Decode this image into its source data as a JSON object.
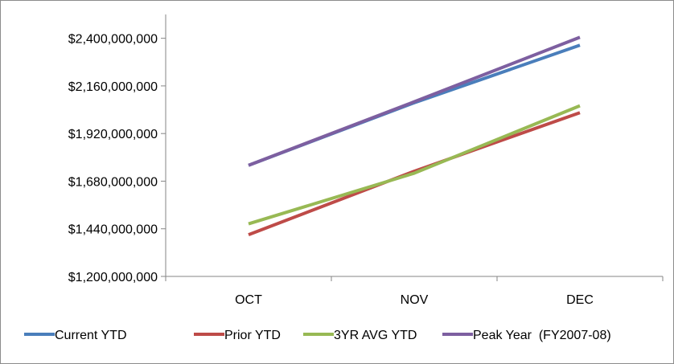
{
  "chart_data": {
    "type": "line",
    "title": "",
    "xlabel": "",
    "ylabel": "",
    "categories": [
      "OCT",
      "NOV",
      "DEC"
    ],
    "ylim": [
      1200000000,
      2520000000
    ],
    "yticks": [
      1200000000,
      1440000000,
      1680000000,
      1920000000,
      2160000000,
      2400000000
    ],
    "ytick_labels": [
      "$1,200,000,000",
      "$1,440,000,000",
      "$1,680,000,000",
      "$1,920,000,000",
      "$2,160,000,000",
      "$2,400,000,000"
    ],
    "grid": false,
    "legend_position": "bottom",
    "series": [
      {
        "name": "Current YTD",
        "color": "#4a7ebb",
        "values": [
          1760000000,
          2075000000,
          2365000000
        ]
      },
      {
        "name": "Prior YTD",
        "color": "#be4b48",
        "values": [
          1410000000,
          1730000000,
          2025000000
        ]
      },
      {
        "name": "3YR AVG YTD",
        "color": "#98b954",
        "values": [
          1465000000,
          1720000000,
          2060000000
        ]
      },
      {
        "name": "Peak Year  (FY2007-08)",
        "color": "#7d5fa0",
        "values": [
          1760000000,
          2080000000,
          2405000000
        ]
      }
    ]
  }
}
